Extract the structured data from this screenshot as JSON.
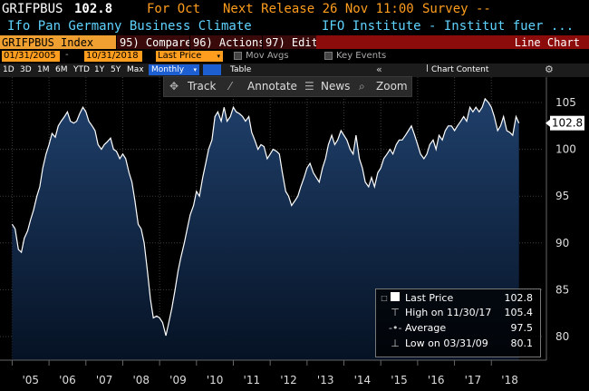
{
  "header": {
    "ticker": "GRIFPBUS",
    "last_value": "102.8",
    "for_label": "For Oct",
    "next_release": "Next Release 26 Nov 11:00",
    "survey": "Survey --",
    "description": "Ifo Pan Germany Business Climate",
    "source": "IFO Institute - Institut fuer ..."
  },
  "toolbar": {
    "index_label": "GRIFPBUS Index",
    "compare_label": "95) Compare",
    "actions_label": "96) Actions",
    "edit_label": "97) Edit",
    "chart_type": "Line Chart"
  },
  "controls": {
    "start_date": "01/31/2005",
    "end_date": "10/31/2018",
    "field": "Last Price",
    "mov_avgs": "Mov Avgs",
    "key_events": "Key Events",
    "ranges": [
      "1D",
      "3D",
      "1M",
      "6M",
      "YTD",
      "1Y",
      "5Y",
      "Max"
    ],
    "frequency": "Monthly",
    "table_label": "Table",
    "chart_content": "Chart Content"
  },
  "plot_tools": {
    "track": "Track",
    "annotate": "Annotate",
    "news": "News",
    "zoom": "Zoom"
  },
  "legend": {
    "last_price_label": "Last Price",
    "last_price_value": "102.8",
    "high_label": "High on 11/30/17",
    "high_value": "105.4",
    "average_label": "Average",
    "average_value": "97.5",
    "low_label": "Low on 03/31/09",
    "low_value": "80.1"
  },
  "colors": {
    "line": "#ffffff",
    "fill_top": "#1f3f6a",
    "fill_bottom": "#061224",
    "accent_orange": "#ff9d1e"
  },
  "chart_data": {
    "type": "area",
    "title": "Ifo Pan Germany Business Climate",
    "ylim": [
      78,
      108
    ],
    "yticks": [
      80,
      85,
      90,
      95,
      100,
      105
    ],
    "ytick_labels": [
      "80",
      "85",
      "90",
      "95",
      "100",
      "105"
    ],
    "xtick_labels": [
      "'05",
      "'06",
      "'07",
      "'08",
      "'09",
      "'10",
      "'11",
      "'12",
      "'13",
      "'14",
      "'15",
      "'16",
      "'17",
      "'18"
    ],
    "xtick_years": [
      2005,
      2006,
      2007,
      2008,
      2009,
      2010,
      2011,
      2012,
      2013,
      2014,
      2015,
      2016,
      2017,
      2018
    ],
    "last_label": "102.8",
    "series": [
      {
        "values": [
          [
            2005.0,
            92.0
          ],
          [
            2005.08,
            91.5
          ],
          [
            2005.17,
            89.3
          ],
          [
            2005.25,
            89.0
          ],
          [
            2005.33,
            90.5
          ],
          [
            2005.42,
            91.3
          ],
          [
            2005.5,
            92.5
          ],
          [
            2005.58,
            93.5
          ],
          [
            2005.67,
            95.0
          ],
          [
            2005.75,
            96.0
          ],
          [
            2005.83,
            98.0
          ],
          [
            2005.92,
            99.5
          ],
          [
            2006.0,
            100.5
          ],
          [
            2006.08,
            101.7
          ],
          [
            2006.17,
            101.3
          ],
          [
            2006.25,
            102.5
          ],
          [
            2006.33,
            103.0
          ],
          [
            2006.42,
            103.5
          ],
          [
            2006.5,
            104.0
          ],
          [
            2006.58,
            103.0
          ],
          [
            2006.67,
            102.8
          ],
          [
            2006.75,
            103.0
          ],
          [
            2006.83,
            103.8
          ],
          [
            2006.92,
            104.5
          ],
          [
            2007.0,
            104.0
          ],
          [
            2007.08,
            103.0
          ],
          [
            2007.17,
            102.5
          ],
          [
            2007.25,
            102.0
          ],
          [
            2007.33,
            100.5
          ],
          [
            2007.42,
            100.0
          ],
          [
            2007.5,
            100.5
          ],
          [
            2007.58,
            100.8
          ],
          [
            2007.67,
            101.2
          ],
          [
            2007.75,
            100.0
          ],
          [
            2007.83,
            99.8
          ],
          [
            2007.92,
            99.0
          ],
          [
            2008.0,
            99.5
          ],
          [
            2008.08,
            99.0
          ],
          [
            2008.17,
            97.5
          ],
          [
            2008.25,
            96.5
          ],
          [
            2008.33,
            94.5
          ],
          [
            2008.42,
            92.0
          ],
          [
            2008.5,
            91.5
          ],
          [
            2008.58,
            90.0
          ],
          [
            2008.67,
            87.0
          ],
          [
            2008.75,
            84.0
          ],
          [
            2008.83,
            82.0
          ],
          [
            2008.92,
            82.2
          ],
          [
            2009.0,
            82.0
          ],
          [
            2009.08,
            81.5
          ],
          [
            2009.17,
            80.1
          ],
          [
            2009.25,
            81.5
          ],
          [
            2009.33,
            83.0
          ],
          [
            2009.42,
            85.0
          ],
          [
            2009.5,
            87.0
          ],
          [
            2009.58,
            88.5
          ],
          [
            2009.67,
            90.0
          ],
          [
            2009.75,
            91.5
          ],
          [
            2009.83,
            93.0
          ],
          [
            2009.92,
            94.0
          ],
          [
            2010.0,
            95.5
          ],
          [
            2010.08,
            95.0
          ],
          [
            2010.17,
            97.0
          ],
          [
            2010.25,
            98.5
          ],
          [
            2010.33,
            100.0
          ],
          [
            2010.42,
            101.0
          ],
          [
            2010.5,
            103.5
          ],
          [
            2010.58,
            104.0
          ],
          [
            2010.67,
            103.0
          ],
          [
            2010.75,
            104.5
          ],
          [
            2010.83,
            103.0
          ],
          [
            2010.92,
            103.5
          ],
          [
            2011.0,
            104.5
          ],
          [
            2011.08,
            104.0
          ],
          [
            2011.17,
            103.8
          ],
          [
            2011.25,
            103.5
          ],
          [
            2011.33,
            103.0
          ],
          [
            2011.42,
            103.5
          ],
          [
            2011.5,
            101.8
          ],
          [
            2011.58,
            101.0
          ],
          [
            2011.67,
            100.0
          ],
          [
            2011.75,
            100.5
          ],
          [
            2011.83,
            100.3
          ],
          [
            2011.92,
            99.0
          ],
          [
            2012.0,
            99.5
          ],
          [
            2012.08,
            100.0
          ],
          [
            2012.17,
            99.8
          ],
          [
            2012.25,
            99.5
          ],
          [
            2012.33,
            97.5
          ],
          [
            2012.42,
            95.5
          ],
          [
            2012.5,
            95.0
          ],
          [
            2012.58,
            94.0
          ],
          [
            2012.67,
            94.5
          ],
          [
            2012.75,
            95.0
          ],
          [
            2012.83,
            96.0
          ],
          [
            2012.92,
            97.0
          ],
          [
            2013.0,
            98.0
          ],
          [
            2013.08,
            98.5
          ],
          [
            2013.17,
            97.5
          ],
          [
            2013.25,
            97.0
          ],
          [
            2013.33,
            96.5
          ],
          [
            2013.42,
            98.0
          ],
          [
            2013.5,
            99.0
          ],
          [
            2013.58,
            100.5
          ],
          [
            2013.67,
            101.5
          ],
          [
            2013.75,
            100.5
          ],
          [
            2013.83,
            101.0
          ],
          [
            2013.92,
            102.0
          ],
          [
            2014.0,
            101.5
          ],
          [
            2014.08,
            101.0
          ],
          [
            2014.17,
            100.0
          ],
          [
            2014.25,
            99.5
          ],
          [
            2014.33,
            101.5
          ],
          [
            2014.42,
            99.0
          ],
          [
            2014.5,
            98.0
          ],
          [
            2014.58,
            96.5
          ],
          [
            2014.67,
            96.0
          ],
          [
            2014.75,
            97.0
          ],
          [
            2014.83,
            96.0
          ],
          [
            2014.92,
            97.5
          ],
          [
            2015.0,
            98.0
          ],
          [
            2015.08,
            99.0
          ],
          [
            2015.17,
            99.5
          ],
          [
            2015.25,
            100.0
          ],
          [
            2015.33,
            99.5
          ],
          [
            2015.42,
            100.5
          ],
          [
            2015.5,
            101.0
          ],
          [
            2015.58,
            101.0
          ],
          [
            2015.67,
            101.5
          ],
          [
            2015.75,
            102.0
          ],
          [
            2015.83,
            102.5
          ],
          [
            2015.92,
            101.5
          ],
          [
            2016.0,
            100.5
          ],
          [
            2016.08,
            99.5
          ],
          [
            2016.17,
            99.0
          ],
          [
            2016.25,
            99.5
          ],
          [
            2016.33,
            100.5
          ],
          [
            2016.42,
            101.0
          ],
          [
            2016.5,
            100.0
          ],
          [
            2016.58,
            101.5
          ],
          [
            2016.67,
            101.0
          ],
          [
            2016.75,
            102.0
          ],
          [
            2016.83,
            102.5
          ],
          [
            2016.92,
            102.5
          ],
          [
            2017.0,
            102.0
          ],
          [
            2017.08,
            102.5
          ],
          [
            2017.17,
            103.0
          ],
          [
            2017.25,
            103.5
          ],
          [
            2017.33,
            103.0
          ],
          [
            2017.42,
            104.5
          ],
          [
            2017.5,
            104.0
          ],
          [
            2017.58,
            104.5
          ],
          [
            2017.67,
            104.0
          ],
          [
            2017.75,
            104.5
          ],
          [
            2017.83,
            105.4
          ],
          [
            2017.92,
            105.0
          ],
          [
            2018.0,
            104.5
          ],
          [
            2018.08,
            103.5
          ],
          [
            2018.17,
            102.0
          ],
          [
            2018.25,
            102.5
          ],
          [
            2018.33,
            103.5
          ],
          [
            2018.42,
            102.0
          ],
          [
            2018.5,
            101.8
          ],
          [
            2018.58,
            101.5
          ],
          [
            2018.67,
            103.5
          ],
          [
            2018.75,
            102.8
          ]
        ]
      }
    ]
  }
}
